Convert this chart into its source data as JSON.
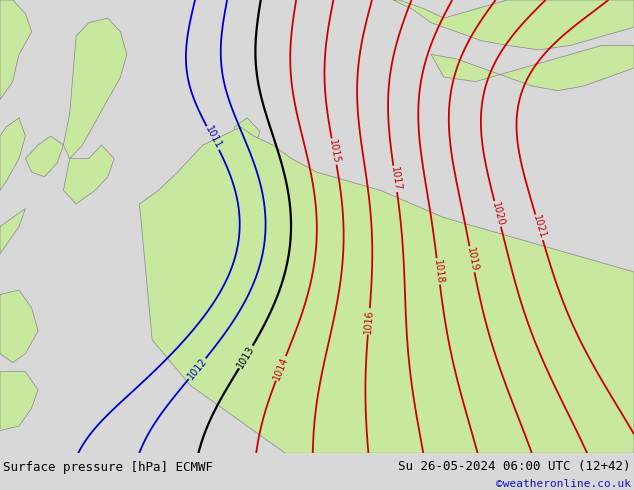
{
  "title_left": "Surface pressure [hPa] ECMWF",
  "title_right": "Su 26-05-2024 06:00 UTC (12+42)",
  "watermark": "©weatheronline.co.uk",
  "bg_color": "#d8d8d8",
  "land_color": "#c8e8a0",
  "sea_color": "#d8d8d8",
  "contour_color_red": "#cc0000",
  "contour_color_blue": "#0000cc",
  "contour_color_black": "#000000",
  "footer_bg": "#c8c8c8",
  "footer_fontsize": 9,
  "watermark_fontsize": 8,
  "watermark_color": "#1111cc",
  "footer_color": "#000000",
  "contour_lw": 1.3,
  "label_fontsize": 7
}
